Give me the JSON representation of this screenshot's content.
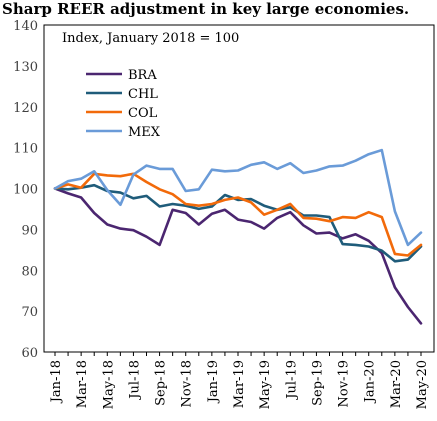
{
  "chart_data": {
    "type": "line",
    "title": "Sharp REER adjustment in key large economies.",
    "subtitle": "Index, January 2018 = 100",
    "xlabel": "",
    "ylabel": "",
    "ylim": [
      60,
      140
    ],
    "yticks": [
      60,
      70,
      80,
      90,
      100,
      110,
      120,
      130,
      140
    ],
    "grid": false,
    "legend_position": "top-left",
    "x": [
      "Jan-18",
      "Feb-18",
      "Mar-18",
      "Apr-18",
      "May-18",
      "Jun-18",
      "Jul-18",
      "Aug-18",
      "Sep-18",
      "Oct-18",
      "Nov-18",
      "Dec-18",
      "Jan-19",
      "Feb-19",
      "Mar-19",
      "Apr-19",
      "May-19",
      "Jun-19",
      "Jul-19",
      "Aug-19",
      "Sep-19",
      "Oct-19",
      "Nov-19",
      "Dec-19",
      "Jan-20",
      "Feb-20",
      "Mar-20",
      "Apr-20",
      "May-20"
    ],
    "x_tick_labels": [
      "Jan-18",
      "Mar-18",
      "May-18",
      "Jul-18",
      "Sep-18",
      "Nov-18",
      "Jan-19",
      "Mar-19",
      "May-19",
      "Jul-19",
      "Sep-19",
      "Nov-19",
      "Jan-20",
      "Mar-20",
      "May-20"
    ],
    "series": [
      {
        "name": "BRA",
        "color": "#4b2670",
        "values": [
          100,
          98.8,
          97.8,
          94,
          91.2,
          90.2,
          89.8,
          88.2,
          86.2,
          94.8,
          94,
          91.2,
          93.8,
          94.8,
          92.4,
          91.8,
          90.2,
          92.8,
          94.2,
          91,
          89,
          89.2,
          87.8,
          88.8,
          87.2,
          84.2,
          75.8,
          71,
          67
        ]
      },
      {
        "name": "CHL",
        "color": "#1f5c7a",
        "values": [
          100,
          99.8,
          100.2,
          100.8,
          99.4,
          99,
          97.6,
          98.2,
          95.6,
          96.2,
          95.8,
          95,
          95.6,
          98.4,
          97.2,
          97.4,
          95.8,
          94.8,
          95.4,
          93.4,
          93.4,
          93,
          86.4,
          86.2,
          85.8,
          84.8,
          82.2,
          82.6,
          85.8
        ]
      },
      {
        "name": "COL",
        "color": "#f26a0a",
        "values": [
          100,
          101,
          100.2,
          103.6,
          103.2,
          103,
          103.6,
          101.6,
          99.8,
          98.6,
          96.2,
          95.8,
          96.2,
          97.2,
          97.8,
          96.6,
          93.6,
          94.8,
          96.2,
          92.8,
          92.6,
          92,
          93,
          92.8,
          94.2,
          93,
          84,
          83.6,
          86.2
        ]
      },
      {
        "name": "MEX",
        "color": "#6a9bd8",
        "values": [
          100,
          101.8,
          102.4,
          104.2,
          99.6,
          96,
          103.4,
          105.6,
          104.8,
          104.8,
          99.4,
          99.8,
          104.6,
          104.2,
          104.4,
          105.8,
          106.4,
          104.8,
          106.2,
          103.8,
          104.4,
          105.4,
          105.6,
          106.8,
          108.4,
          109.4,
          94.4,
          86.2,
          89.2
        ]
      }
    ]
  }
}
